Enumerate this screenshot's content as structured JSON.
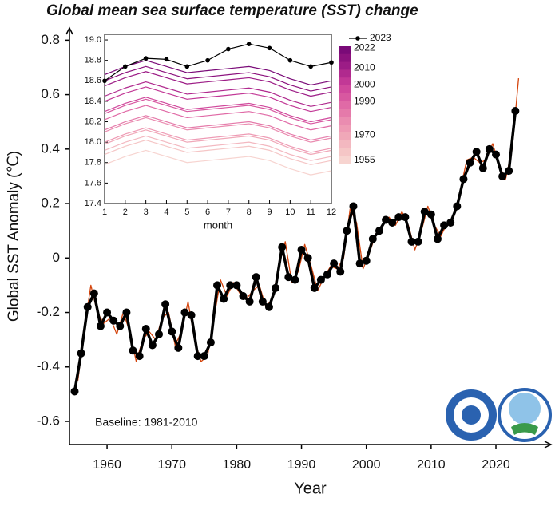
{
  "chart_data": [
    {
      "type": "line",
      "title": "Global mean sea surface temperature (SST) change",
      "xlabel": "Year",
      "ylabel": "Global SST Anomaly (℃)",
      "annotation": "Baseline: 1981-2010",
      "xlim": [
        1954.2,
        2028.5
      ],
      "xticks": [
        1960,
        1970,
        1980,
        1990,
        2000,
        2010,
        2020
      ],
      "ylim": [
        -0.685,
        0.845
      ],
      "yticks": [
        0.8,
        0.6,
        0.4,
        0.2,
        0,
        -0.2,
        -0.4,
        -0.6
      ],
      "series": [
        {
          "color": "#d4440c",
          "width": 1.3,
          "markers": false,
          "x": [
            1955.5,
            1956.5,
            1957.5,
            1958.5,
            1959.5,
            1960.5,
            1961.5,
            1962.5,
            1963.5,
            1964.5,
            1965.5,
            1966.5,
            1967.5,
            1968.5,
            1969.5,
            1970.5,
            1971.5,
            1972.5,
            1973.5,
            1974.5,
            1975.5,
            1976.5,
            1977.5,
            1978.5,
            1979.5,
            1980.5,
            1981.5,
            1982.5,
            1983.5,
            1984.5,
            1985.5,
            1986.5,
            1987.5,
            1988.5,
            1989.5,
            1990.5,
            1991.5,
            1992.5,
            1993.5,
            1994.5,
            1995.5,
            1996.5,
            1997.5,
            1998.5,
            1999.5,
            2000.5,
            2001.5,
            2002.5,
            2003.5,
            2004.5,
            2005.5,
            2006.5,
            2007.5,
            2008.5,
            2009.5,
            2010.5,
            2011.5,
            2012.5,
            2013.5,
            2014.5,
            2015.5,
            2016.5,
            2017.5,
            2018.5,
            2019.5,
            2020.5,
            2021.5,
            2022.5,
            2023.5
          ],
          "values": [
            -0.45,
            -0.26,
            -0.1,
            -0.2,
            -0.24,
            -0.22,
            -0.28,
            -0.2,
            -0.27,
            -0.38,
            -0.3,
            -0.27,
            -0.3,
            -0.22,
            -0.2,
            -0.32,
            -0.27,
            -0.16,
            -0.3,
            -0.38,
            -0.36,
            -0.22,
            -0.08,
            -0.14,
            -0.09,
            -0.13,
            -0.15,
            -0.12,
            -0.1,
            -0.18,
            -0.15,
            -0.03,
            0.06,
            -0.09,
            -0.05,
            0.05,
            -0.03,
            -0.12,
            -0.07,
            -0.03,
            -0.04,
            0.0,
            0.18,
            0.13,
            -0.04,
            0.02,
            0.09,
            0.12,
            0.15,
            0.12,
            0.17,
            0.12,
            0.03,
            0.1,
            0.19,
            0.12,
            0.08,
            0.13,
            0.15,
            0.25,
            0.36,
            0.37,
            0.35,
            0.36,
            0.42,
            0.34,
            0.29,
            0.4,
            0.66
          ]
        },
        {
          "color": "#000000",
          "width": 3.5,
          "markers": true,
          "x": [
            1955,
            1956,
            1957,
            1958,
            1959,
            1960,
            1961,
            1962,
            1963,
            1964,
            1965,
            1966,
            1967,
            1968,
            1969,
            1970,
            1971,
            1972,
            1973,
            1974,
            1975,
            1976,
            1977,
            1978,
            1979,
            1980,
            1981,
            1982,
            1983,
            1984,
            1985,
            1986,
            1987,
            1988,
            1989,
            1990,
            1991,
            1992,
            1993,
            1994,
            1995,
            1996,
            1997,
            1998,
            1999,
            2000,
            2001,
            2002,
            2003,
            2004,
            2005,
            2006,
            2007,
            2008,
            2009,
            2010,
            2011,
            2012,
            2013,
            2014,
            2015,
            2016,
            2017,
            2018,
            2019,
            2020,
            2021,
            2022,
            2023
          ],
          "values": [
            -0.49,
            -0.35,
            -0.18,
            -0.13,
            -0.25,
            -0.2,
            -0.23,
            -0.25,
            -0.2,
            -0.34,
            -0.36,
            -0.26,
            -0.32,
            -0.28,
            -0.17,
            -0.27,
            -0.33,
            -0.2,
            -0.21,
            -0.36,
            -0.36,
            -0.31,
            -0.1,
            -0.15,
            -0.1,
            -0.1,
            -0.14,
            -0.16,
            -0.07,
            -0.16,
            -0.18,
            -0.11,
            0.04,
            -0.07,
            -0.08,
            0.03,
            0.0,
            -0.11,
            -0.08,
            -0.06,
            -0.02,
            -0.05,
            0.1,
            0.19,
            -0.02,
            -0.01,
            0.07,
            0.1,
            0.14,
            0.13,
            0.15,
            0.15,
            0.06,
            0.06,
            0.17,
            0.16,
            0.07,
            0.12,
            0.13,
            0.19,
            0.29,
            0.35,
            0.39,
            0.33,
            0.4,
            0.38,
            0.3,
            0.32,
            0.54
          ]
        }
      ]
    },
    {
      "type": "line",
      "xlabel": "month",
      "x": [
        1,
        2,
        3,
        4,
        5,
        6,
        7,
        8,
        9,
        10,
        11,
        12
      ],
      "xlim": [
        1,
        12
      ],
      "xticks": [
        1,
        2,
        3,
        4,
        5,
        6,
        7,
        8,
        9,
        10,
        11,
        12
      ],
      "ylim": [
        17.4,
        19.055
      ],
      "yticks": [
        {
          "value": 19.0,
          "label": "19.0"
        },
        18.8,
        18.6,
        18.4,
        18.2,
        {
          "value": 18.0,
          "label": "18.0"
        },
        17.8,
        17.6,
        17.4
      ],
      "series": [
        {
          "color": "#f7d4d0",
          "values": [
            17.78,
            17.86,
            17.92,
            17.86,
            17.8,
            17.82,
            17.84,
            17.86,
            17.82,
            17.74,
            17.68,
            17.72
          ]
        },
        {
          "color": "#f5c6c6",
          "values": [
            17.88,
            17.96,
            18.02,
            17.96,
            17.9,
            17.92,
            17.94,
            17.96,
            17.92,
            17.84,
            17.78,
            17.82
          ]
        },
        {
          "color": "#f3b8c0",
          "values": [
            17.92,
            18.0,
            18.06,
            18.0,
            17.94,
            17.96,
            17.98,
            18.0,
            17.96,
            17.88,
            17.82,
            17.86
          ]
        },
        {
          "color": "#f0a8b8",
          "values": [
            17.98,
            18.06,
            18.12,
            18.06,
            18.0,
            18.02,
            18.04,
            18.06,
            18.02,
            17.94,
            17.88,
            17.92
          ]
        },
        {
          "color": "#ee9ab4",
          "values": [
            18.0,
            18.08,
            18.14,
            18.08,
            18.02,
            18.04,
            18.06,
            18.08,
            18.04,
            17.96,
            17.9,
            17.94
          ]
        },
        {
          "color": "#ea8cb0",
          "values": [
            18.1,
            18.18,
            18.24,
            18.18,
            18.12,
            18.14,
            18.16,
            18.18,
            18.14,
            18.06,
            18.0,
            18.04
          ]
        },
        {
          "color": "#e57aaa",
          "values": [
            18.12,
            18.2,
            18.26,
            18.2,
            18.14,
            18.16,
            18.18,
            18.2,
            18.16,
            18.08,
            18.02,
            18.06
          ]
        },
        {
          "color": "#e06aa6",
          "values": [
            18.22,
            18.3,
            18.36,
            18.3,
            18.24,
            18.26,
            18.28,
            18.3,
            18.26,
            18.18,
            18.12,
            18.16
          ]
        },
        {
          "color": "#d858a0",
          "values": [
            18.28,
            18.36,
            18.42,
            18.36,
            18.3,
            18.32,
            18.34,
            18.36,
            18.32,
            18.24,
            18.18,
            18.22
          ]
        },
        {
          "color": "#d0489c",
          "values": [
            18.3,
            18.38,
            18.44,
            18.38,
            18.32,
            18.34,
            18.36,
            18.38,
            18.34,
            18.26,
            18.2,
            18.24
          ]
        },
        {
          "color": "#c23896",
          "values": [
            18.4,
            18.48,
            18.54,
            18.48,
            18.42,
            18.44,
            18.46,
            18.48,
            18.44,
            18.36,
            18.3,
            18.34
          ]
        },
        {
          "color": "#b02a8e",
          "values": [
            18.45,
            18.53,
            18.59,
            18.53,
            18.47,
            18.49,
            18.51,
            18.53,
            18.49,
            18.41,
            18.35,
            18.39
          ]
        },
        {
          "color": "#9c1c86",
          "values": [
            18.55,
            18.63,
            18.69,
            18.63,
            18.57,
            18.59,
            18.61,
            18.63,
            18.59,
            18.51,
            18.45,
            18.49
          ]
        },
        {
          "color": "#8c127e",
          "values": [
            18.6,
            18.68,
            18.74,
            18.68,
            18.62,
            18.64,
            18.66,
            18.68,
            18.64,
            18.56,
            18.5,
            18.54
          ]
        },
        {
          "color": "#7a0a78",
          "values": [
            18.66,
            18.74,
            18.8,
            18.74,
            18.68,
            18.7,
            18.72,
            18.74,
            18.7,
            18.62,
            18.56,
            18.6
          ]
        },
        {
          "name": "2023",
          "color": "#000000",
          "markers": true,
          "values": [
            18.6,
            18.74,
            18.82,
            18.81,
            18.74,
            18.8,
            18.91,
            18.96,
            18.92,
            18.8,
            18.74,
            18.78
          ]
        }
      ],
      "colorbar": {
        "lim": [
          1953,
          2023
        ],
        "ticks": [
          2022,
          2010,
          2000,
          1990,
          1970,
          1955
        ],
        "colors": [
          "#7a0a78",
          "#8c127e",
          "#9c1c86",
          "#b02a8e",
          "#c23896",
          "#d0489c",
          "#d858a0",
          "#e06aa6",
          "#e57aaa",
          "#ea8cb0",
          "#ee9ab4",
          "#f0a8b8",
          "#f3b8c0",
          "#f5c6c6",
          "#f7d4d0"
        ]
      }
    }
  ]
}
